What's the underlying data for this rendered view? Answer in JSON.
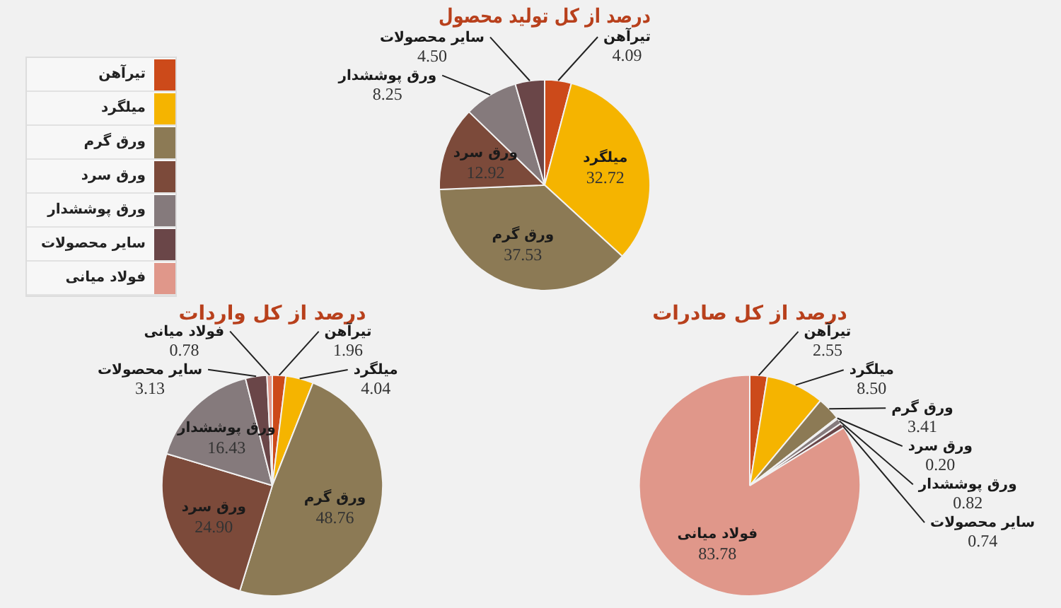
{
  "chart_data": [
    {
      "type": "pie",
      "title": "درصد از کل تولید محصول",
      "legend": "left",
      "data_labels": true,
      "categories": [
        "تیرآهن",
        "میلگرد",
        "ورق گرم",
        "ورق سرد",
        "ورق پوششدار",
        "سایر محصولات",
        "فولاد میانی"
      ],
      "values": [
        4.09,
        32.72,
        37.53,
        12.92,
        8.25,
        4.5,
        null
      ],
      "value_labels": [
        "4.09",
        "32.72",
        "37.53",
        "12.92",
        "8.25",
        "4.50",
        null
      ],
      "colors": [
        "#cc4a1a",
        "#f5b400",
        "#8c7a55",
        "#7c4a3a",
        "#857a7c",
        "#6a4648",
        "#e0978a"
      ]
    },
    {
      "type": "pie",
      "title": "درصد از کل واردات",
      "data_labels": true,
      "categories": [
        "تیرآهن",
        "میلگرد",
        "ورق گرم",
        "ورق سرد",
        "ورق پوششدار",
        "سایر محصولات",
        "فولاد میانی"
      ],
      "values": [
        1.96,
        4.04,
        48.76,
        24.9,
        16.43,
        3.13,
        0.78
      ],
      "value_labels": [
        "1.96",
        "4.04",
        "48.76",
        "24.90",
        "16.43",
        "3.13",
        "0.78"
      ],
      "colors": [
        "#cc4a1a",
        "#f5b400",
        "#8c7a55",
        "#7c4a3a",
        "#857a7c",
        "#6a4648",
        "#e0978a"
      ]
    },
    {
      "type": "pie",
      "title": "درصد از کل صادرات",
      "data_labels": true,
      "categories": [
        "تیرآهن",
        "میلگرد",
        "ورق گرم",
        "ورق سرد",
        "ورق پوششدار",
        "سایر محصولات",
        "فولاد میانی"
      ],
      "values": [
        2.55,
        8.5,
        3.41,
        0.2,
        0.82,
        0.74,
        83.78
      ],
      "value_labels": [
        "2.55",
        "8.50",
        "3.41",
        "0.20",
        "0.82",
        "0.74",
        "83.78"
      ],
      "colors": [
        "#cc4a1a",
        "#f5b400",
        "#8c7a55",
        "#7c4a3a",
        "#857a7c",
        "#6a4648",
        "#e0978a"
      ]
    }
  ]
}
